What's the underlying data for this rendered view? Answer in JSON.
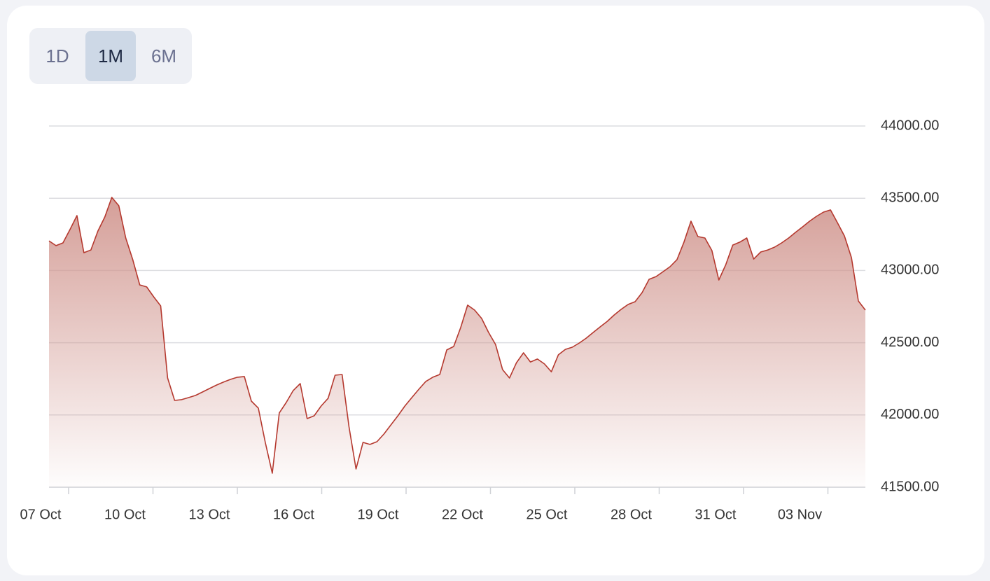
{
  "buttons": [
    "1D",
    "1M",
    "6M"
  ],
  "chart_data": {
    "type": "area",
    "xticks": [
      "07 Oct",
      "10 Oct",
      "13 Oct",
      "16 Oct",
      "19 Oct",
      "22 Oct",
      "25 Oct",
      "28 Oct",
      "31 Oct",
      "03 Nov"
    ],
    "ylim": [
      41500,
      44000
    ],
    "yticks": [
      {
        "value": 41500,
        "label": "41500.00"
      },
      {
        "value": 42000,
        "label": "42000.00"
      },
      {
        "value": 42500,
        "label": "42500.00"
      },
      {
        "value": 43000,
        "label": "43000.00"
      },
      {
        "value": 43500,
        "label": "43500.00"
      },
      {
        "value": 44000,
        "label": "44000.00"
      }
    ],
    "grid": true,
    "color": "#b5392f",
    "values": [
      43205,
      43172,
      43191,
      43283,
      43380,
      43123,
      43142,
      43273,
      43370,
      43506,
      43448,
      43225,
      43075,
      42900,
      42886,
      42818,
      42755,
      42256,
      42101,
      42106,
      42120,
      42135,
      42159,
      42183,
      42207,
      42227,
      42246,
      42261,
      42266,
      42096,
      42047,
      41810,
      41597,
      42014,
      42086,
      42169,
      42217,
      41975,
      41994,
      42062,
      42115,
      42275,
      42280,
      41917,
      41626,
      41810,
      41796,
      41815,
      41868,
      41931,
      41994,
      42062,
      42120,
      42178,
      42232,
      42261,
      42280,
      42450,
      42474,
      42605,
      42760,
      42726,
      42668,
      42571,
      42488,
      42314,
      42256,
      42362,
      42430,
      42367,
      42387,
      42353,
      42299,
      42416,
      42454,
      42469,
      42498,
      42532,
      42571,
      42610,
      42648,
      42692,
      42731,
      42765,
      42784,
      42847,
      42939,
      42958,
      42992,
      43026,
      43075,
      43196,
      43341,
      43235,
      43225,
      43138,
      42934,
      43041,
      43176,
      43196,
      43225,
      43079,
      43128,
      43142,
      43162,
      43191,
      43225,
      43264,
      43302,
      43341,
      43375,
      43404,
      43419,
      43331,
      43239,
      43089,
      42789,
      42726
    ]
  }
}
